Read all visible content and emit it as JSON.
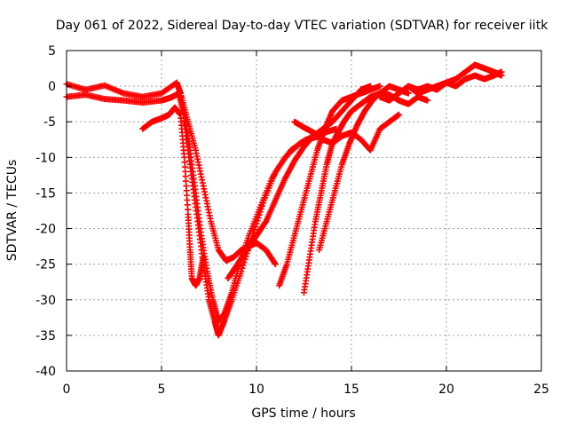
{
  "chart_data": {
    "type": "scatter",
    "title": "Day 061 of 2022, Sidereal Day-to-day VTEC variation (SDTVAR) for receiver iitk",
    "xlabel": "GPS time / hours",
    "ylabel": "SDTVAR / TECUs",
    "xlim": [
      0,
      25
    ],
    "ylim": [
      -40,
      5
    ],
    "xticks": [
      0,
      5,
      10,
      15,
      20,
      25
    ],
    "yticks": [
      5,
      0,
      -5,
      -10,
      -15,
      -20,
      -25,
      -30,
      -35,
      -40
    ],
    "grid": true,
    "legend": "none",
    "marker": "plus",
    "color": "#ff0000",
    "series": [
      {
        "x": [
          0.0,
          1.0,
          2.0,
          3.0,
          4.0,
          5.0,
          5.8,
          6.0,
          6.3,
          6.6,
          6.9,
          7.2,
          7.5,
          7.8,
          8.0,
          8.3,
          8.7,
          9.2,
          9.8,
          10.4,
          11.0,
          11.8,
          12.6,
          13.4
        ],
        "y": [
          0.3,
          -0.5,
          0.1,
          -1.0,
          -1.5,
          -1.0,
          0.5,
          -1.0,
          -7.0,
          -13.0,
          -19.0,
          -25.0,
          -30.0,
          -33.0,
          -35.0,
          -33.0,
          -30.0,
          -26.0,
          -21.0,
          -16.0,
          -12.0,
          -9.0,
          -7.5,
          -7.0
        ]
      },
      {
        "x": [
          0.0,
          1.0,
          2.0,
          3.0,
          4.0,
          5.0,
          5.5,
          5.9,
          6.2,
          6.5,
          6.8,
          7.1,
          7.4,
          7.7,
          8.0,
          8.3,
          8.7,
          9.1,
          9.6,
          10.2,
          10.8,
          11.5,
          12.3,
          13.0,
          13.6,
          14.2
        ],
        "y": [
          -1.5,
          -1.2,
          -1.8,
          -2.0,
          -2.3,
          -2.0,
          -1.6,
          -1.0,
          -4.0,
          -9.0,
          -15.0,
          -21.0,
          -26.0,
          -30.0,
          -33.0,
          -32.0,
          -29.0,
          -25.0,
          -21.0,
          -17.0,
          -13.0,
          -10.0,
          -8.0,
          -7.0,
          -6.5,
          -6.0
        ]
      },
      {
        "x": [
          4.0,
          4.5,
          5.0,
          5.4,
          5.7,
          6.0,
          6.2,
          6.4,
          6.5,
          6.6,
          6.8,
          7.0,
          7.2
        ],
        "y": [
          -6.0,
          -5.0,
          -4.5,
          -4.0,
          -3.0,
          -4.0,
          -10.0,
          -18.0,
          -23.0,
          -27.0,
          -28.0,
          -27.0,
          -24.0
        ]
      },
      {
        "x": [
          6.0,
          6.4,
          6.8,
          7.2,
          7.6,
          8.0,
          8.4,
          8.8,
          9.2,
          9.6,
          10.0,
          10.5,
          11.0
        ],
        "y": [
          -1.0,
          -5.0,
          -9.0,
          -14.0,
          -19.0,
          -23.0,
          -24.5,
          -24.0,
          -23.0,
          -22.5,
          -22.0,
          -23.0,
          -25.0
        ]
      },
      {
        "x": [
          8.5,
          9.0,
          9.5,
          10.0,
          10.5,
          11.0,
          11.5,
          12.0,
          12.5,
          13.0,
          13.5,
          14.0,
          14.5,
          15.0,
          15.5,
          16.0
        ],
        "y": [
          -27.0,
          -25.0,
          -23.0,
          -21.0,
          -19.0,
          -16.0,
          -13.0,
          -10.5,
          -8.5,
          -7.0,
          -6.0,
          -5.0,
          -3.5,
          -2.0,
          -0.5,
          0.0
        ]
      },
      {
        "x": [
          11.2,
          11.6,
          12.0,
          12.4,
          12.8,
          13.2,
          13.6,
          14.0,
          14.5,
          15.0,
          15.5,
          16.0,
          16.5
        ],
        "y": [
          -28.0,
          -25.0,
          -21.0,
          -17.0,
          -13.0,
          -9.0,
          -6.0,
          -3.5,
          -2.0,
          -1.5,
          -1.0,
          -0.5,
          0.0
        ]
      },
      {
        "x": [
          12.5,
          12.8,
          13.1,
          13.4,
          13.7,
          14.0,
          14.3,
          14.6,
          15.0,
          15.5,
          16.0,
          16.5,
          17.0,
          17.5,
          18.0,
          18.5,
          19.0
        ],
        "y": [
          -29.0,
          -24.0,
          -19.0,
          -15.0,
          -11.0,
          -8.0,
          -6.5,
          -5.0,
          -3.5,
          -2.5,
          -1.5,
          -1.0,
          -1.2,
          -2.0,
          -2.5,
          -1.5,
          -2.0
        ]
      },
      {
        "x": [
          13.3,
          13.7,
          14.1,
          14.5,
          14.9,
          15.3,
          15.7,
          16.1,
          16.5,
          17.0,
          17.5,
          18.0
        ],
        "y": [
          -23.0,
          -19.0,
          -15.0,
          -11.0,
          -8.0,
          -5.5,
          -3.5,
          -2.0,
          -1.0,
          0.0,
          -0.5,
          -1.0
        ]
      },
      {
        "x": [
          12.0,
          12.5,
          13.0,
          13.5,
          14.0,
          14.5,
          15.0,
          15.5,
          16.0,
          16.5,
          17.0,
          17.5
        ],
        "y": [
          -5.0,
          -5.8,
          -6.5,
          -7.5,
          -8.0,
          -7.0,
          -6.5,
          -7.5,
          -9.0,
          -6.0,
          -5.0,
          -4.0
        ]
      },
      {
        "x": [
          16.5,
          17.0,
          17.5,
          18.0,
          18.5,
          19.0,
          19.5,
          20.0,
          20.5,
          21.0,
          21.5,
          22.0,
          22.5,
          22.9
        ],
        "y": [
          -1.5,
          -2.0,
          -1.0,
          0.0,
          -0.5,
          0.0,
          -0.5,
          0.5,
          1.0,
          2.0,
          3.0,
          2.5,
          2.0,
          1.5
        ]
      },
      {
        "x": [
          18.0,
          18.5,
          19.0,
          19.5,
          20.0,
          20.5,
          21.0,
          21.5,
          22.0,
          22.5,
          22.9
        ],
        "y": [
          0.0,
          -1.0,
          -0.5,
          0.0,
          0.5,
          0.0,
          1.0,
          1.5,
          1.0,
          1.5,
          2.0
        ]
      }
    ]
  }
}
